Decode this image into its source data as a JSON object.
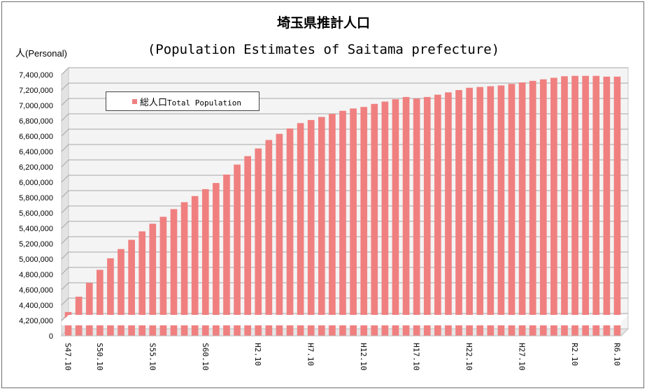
{
  "chart_data": {
    "type": "bar",
    "title": "埼玉県推計人口",
    "subtitle": "(Population Estimates of Saitama prefecture)",
    "ylabel_jp": "人",
    "ylabel_en": "(Personal)",
    "legend_jp": "総人口",
    "legend_en": "Total Population",
    "bar_color": "#f08080",
    "axis_break": true,
    "ylim": [
      4200000,
      7400000
    ],
    "yticks": [
      0,
      4200000,
      4400000,
      4600000,
      4800000,
      5000000,
      5200000,
      5400000,
      5600000,
      5800000,
      6000000,
      6200000,
      6400000,
      6600000,
      6800000,
      7000000,
      7200000,
      7400000
    ],
    "ytick_labels": [
      "0",
      "4,200,000",
      "4,400,000",
      "4,600,000",
      "4,800,000",
      "5,000,000",
      "5,200,000",
      "5,400,000",
      "5,600,000",
      "5,800,000",
      "6,000,000",
      "6,200,000",
      "6,400,000",
      "6,600,000",
      "6,800,000",
      "7,000,000",
      "7,200,000",
      "7,400,000"
    ],
    "xtick_labels": [
      {
        "index": 0,
        "label": "S47.10"
      },
      {
        "index": 3,
        "label": "S50.10"
      },
      {
        "index": 8,
        "label": "S55.10"
      },
      {
        "index": 13,
        "label": "S60.10"
      },
      {
        "index": 18,
        "label": "H2.10"
      },
      {
        "index": 23,
        "label": "H7.10"
      },
      {
        "index": 28,
        "label": "H12.10"
      },
      {
        "index": 33,
        "label": "H17.10"
      },
      {
        "index": 38,
        "label": "H22.10"
      },
      {
        "index": 43,
        "label": "H27.10"
      },
      {
        "index": 48,
        "label": "R2.10"
      },
      {
        "index": 52,
        "label": "R6.10"
      }
    ],
    "values": [
      4310000,
      4510000,
      4690000,
      4860000,
      5010000,
      5130000,
      5250000,
      5360000,
      5460000,
      5550000,
      5650000,
      5740000,
      5820000,
      5910000,
      5990000,
      6100000,
      6230000,
      6340000,
      6440000,
      6550000,
      6630000,
      6700000,
      6770000,
      6810000,
      6850000,
      6890000,
      6930000,
      6960000,
      6980000,
      7020000,
      7050000,
      7080000,
      7110000,
      7090000,
      7110000,
      7140000,
      7170000,
      7200000,
      7230000,
      7240000,
      7250000,
      7260000,
      7280000,
      7300000,
      7320000,
      7340000,
      7360000,
      7380000,
      7385000,
      7385000,
      7385000,
      7375000,
      7375000
    ]
  }
}
